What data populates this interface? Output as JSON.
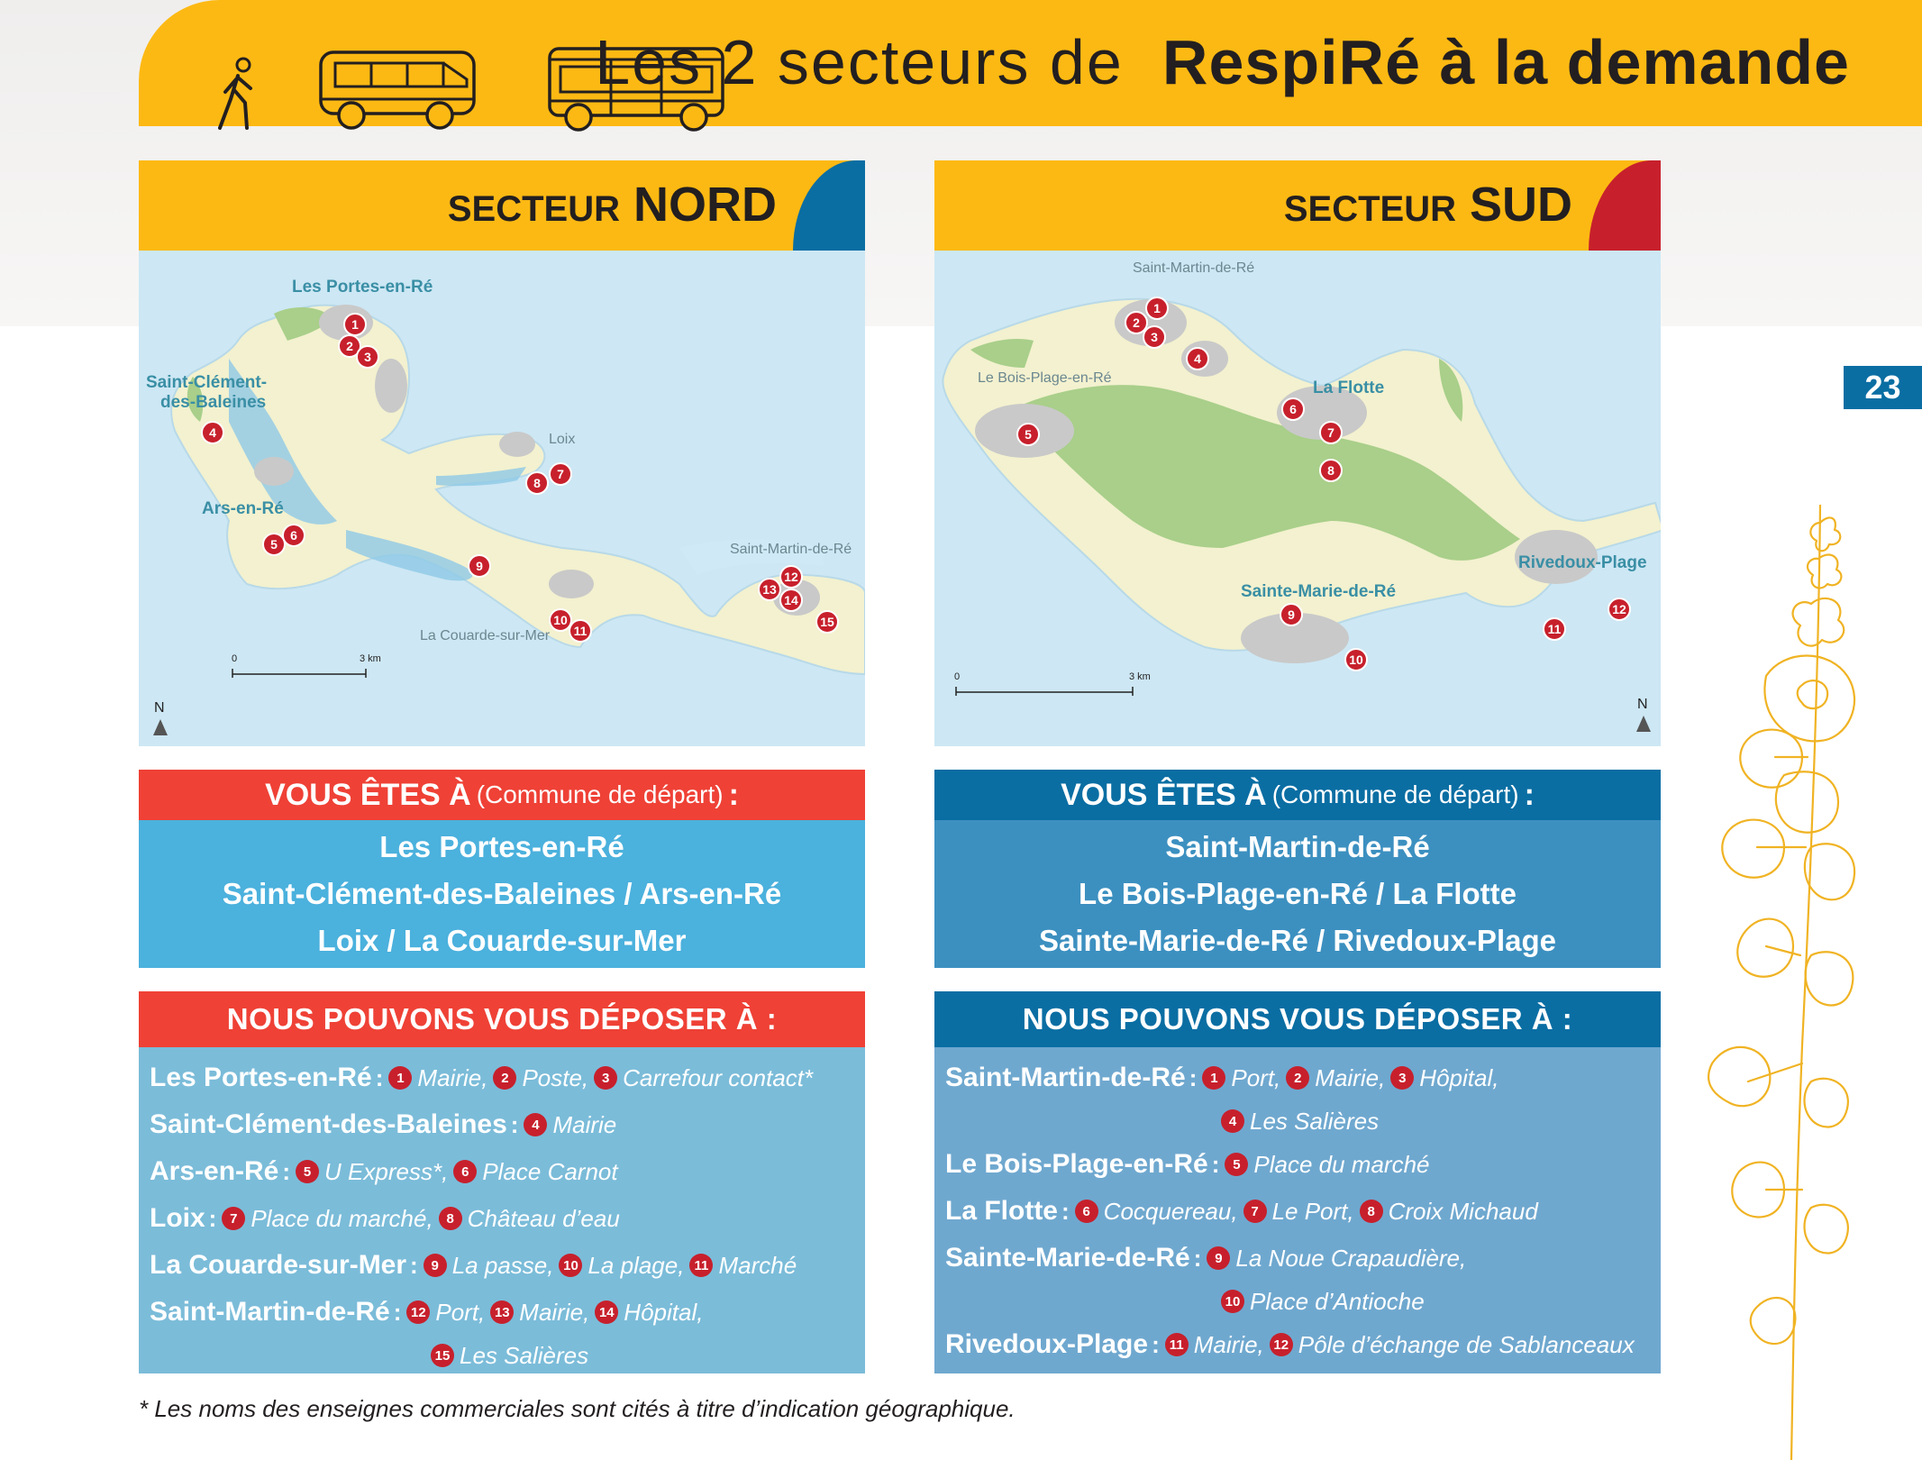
{
  "header": {
    "title_light": "Les 2 secteurs de",
    "title_bold": "RespiRé à la demande",
    "icons": [
      "walking-person-icon",
      "minibus-icon",
      "bus-icon"
    ]
  },
  "page_number": "23",
  "colors": {
    "yellow": "#fdb913",
    "north_accent": "#0a6ea3",
    "south_accent": "#c7202c",
    "red_header": "#ef4136",
    "blue_header": "#0a6ea3",
    "pin": "#c7202c"
  },
  "nord": {
    "title_small": "SECTEUR",
    "title_big": "NORD",
    "map": {
      "labels": [
        "Les Portes-en-Ré",
        "Saint-Clément-",
        "des-Baleines",
        "Loix",
        "Ars-en-Ré",
        "Saint-Martin-de-Ré",
        "La Couarde-sur-Mer"
      ],
      "scale_start": "0",
      "scale_end": "3 km",
      "north": "N",
      "pins": [
        "1",
        "2",
        "3",
        "4",
        "5",
        "6",
        "7",
        "8",
        "9",
        "10",
        "11",
        "12",
        "13",
        "14",
        "15"
      ]
    },
    "depart": {
      "label": "VOUS ÊTES À",
      "paren": "(Commune de départ)",
      "colon": ":",
      "lines": [
        "Les Portes-en-Ré",
        "Saint-Clément-des-Baleines / Ars-en-Ré",
        "Loix / La Couarde-sur-Mer"
      ]
    },
    "drop": {
      "label": "NOUS POUVONS VOUS DÉPOSER À :",
      "rows": [
        {
          "town": "Les Portes-en-Ré",
          "sep": ":",
          "stops": [
            {
              "n": "1",
              "t": "Mairie,"
            },
            {
              "n": "2",
              "t": "Poste,"
            },
            {
              "n": "3",
              "t": "Carrefour contact*"
            }
          ]
        },
        {
          "town": "Saint-Clément-des-Baleines",
          "sep": ":",
          "stops": [
            {
              "n": "4",
              "t": "Mairie"
            }
          ]
        },
        {
          "town": "Ars-en-Ré",
          "sep": ":",
          "stops": [
            {
              "n": "5",
              "t": "U Express*,"
            },
            {
              "n": "6",
              "t": "Place Carnot"
            }
          ]
        },
        {
          "town": "Loix",
          "sep": ":",
          "stops": [
            {
              "n": "7",
              "t": "Place du marché,"
            },
            {
              "n": "8",
              "t": "Château d’eau"
            }
          ]
        },
        {
          "town": "La Couarde-sur-Mer",
          "sep": ":",
          "stops": [
            {
              "n": "9",
              "t": "La passe,"
            },
            {
              "n": "10",
              "t": "La plage,"
            },
            {
              "n": "11",
              "t": "Marché"
            }
          ]
        },
        {
          "town": "Saint-Martin-de-Ré",
          "sep": ":",
          "stops": [
            {
              "n": "12",
              "t": "Port,"
            },
            {
              "n": "13",
              "t": "Mairie,"
            },
            {
              "n": "14",
              "t": "Hôpital,"
            }
          ]
        },
        {
          "town": "",
          "sep": "",
          "indent": 312,
          "stops": [
            {
              "n": "15",
              "t": "Les Salières"
            }
          ]
        }
      ]
    }
  },
  "sud": {
    "title_small": "SECTEUR",
    "title_big": "SUD",
    "map": {
      "labels": [
        "Saint-Martin-de-Ré",
        "Le Bois-Plage-en-Ré",
        "La Flotte",
        "Rivedoux-Plage",
        "Sainte-Marie-de-Ré"
      ],
      "scale_start": "0",
      "scale_end": "3 km",
      "north": "N",
      "pins": [
        "1",
        "2",
        "3",
        "4",
        "5",
        "6",
        "7",
        "8",
        "9",
        "10",
        "11",
        "12"
      ]
    },
    "depart": {
      "label": "VOUS ÊTES À",
      "paren": "(Commune de départ)",
      "colon": ":",
      "lines": [
        "Saint-Martin-de-Ré",
        "Le Bois-Plage-en-Ré / La Flotte",
        "Sainte-Marie-de-Ré / Rivedoux-Plage"
      ]
    },
    "drop": {
      "label": "NOUS POUVONS VOUS DÉPOSER À :",
      "rows": [
        {
          "town": "Saint-Martin-de-Ré",
          "sep": ":",
          "stops": [
            {
              "n": "1",
              "t": "Port,"
            },
            {
              "n": "2",
              "t": "Mairie,"
            },
            {
              "n": "3",
              "t": "Hôpital,"
            }
          ]
        },
        {
          "town": "",
          "sep": "",
          "indent": 306,
          "stops": [
            {
              "n": "4",
              "t": "Les Salières"
            }
          ]
        },
        {
          "town": "Le Bois-Plage-en-Ré",
          "sep": ":",
          "stops": [
            {
              "n": "5",
              "t": "Place du marché"
            }
          ]
        },
        {
          "town": "La Flotte",
          "sep": ":",
          "stops": [
            {
              "n": "6",
              "t": "Cocquereau,"
            },
            {
              "n": "7",
              "t": "Le Port,"
            },
            {
              "n": "8",
              "t": "Croix Michaud"
            }
          ]
        },
        {
          "town": "Sainte-Marie-de-Ré",
          "sep": ":",
          "stops": [
            {
              "n": "9",
              "t": "La Noue Crapaudière,"
            }
          ]
        },
        {
          "town": "",
          "sep": "",
          "indent": 306,
          "stops": [
            {
              "n": "10",
              "t": "Place d’Antioche"
            }
          ]
        },
        {
          "town": "Rivedoux-Plage",
          "sep": ":",
          "stops": [
            {
              "n": "11",
              "t": "Mairie,"
            },
            {
              "n": "12",
              "t": "Pôle d’échange de Sablanceaux"
            }
          ]
        }
      ]
    }
  },
  "footnote": "* Les noms des enseignes commerciales sont cités à titre d’indication géographique."
}
